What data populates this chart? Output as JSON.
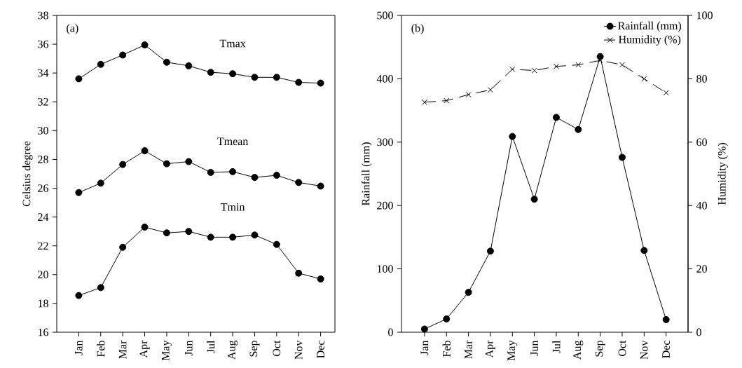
{
  "chart_data": [
    {
      "type": "line",
      "title": "(a)",
      "ylabel": "Celsius degree",
      "categories": [
        "Jan",
        "Feb",
        "Mar",
        "Apr",
        "May",
        "Jun",
        "Jul",
        "Aug",
        "Sep",
        "Oct",
        "Nov",
        "Dec"
      ],
      "ylim": [
        16,
        38
      ],
      "yticks": [
        16,
        18,
        20,
        22,
        24,
        26,
        28,
        30,
        32,
        34,
        36,
        38
      ],
      "marker": "circle",
      "line_style": "solid",
      "legend": false,
      "series": [
        {
          "name": "Tmax",
          "color": "#000000",
          "values": [
            33.6,
            34.6,
            35.25,
            35.95,
            34.75,
            34.5,
            34.05,
            33.95,
            33.7,
            33.7,
            33.35,
            33.3
          ]
        },
        {
          "name": "Tmean",
          "color": "#000000",
          "values": [
            25.7,
            26.35,
            27.65,
            28.6,
            27.7,
            27.85,
            27.1,
            27.15,
            26.75,
            26.9,
            26.4,
            26.15
          ]
        },
        {
          "name": "Tmin",
          "color": "#000000",
          "values": [
            18.55,
            19.1,
            21.9,
            23.3,
            22.9,
            23.0,
            22.6,
            22.6,
            22.75,
            22.1,
            20.1,
            19.7
          ]
        }
      ]
    },
    {
      "type": "line",
      "title": "(b)",
      "ylabel": "Rainfall (mm)",
      "y2label": "Humidity (%)",
      "categories": [
        "Jan",
        "Feb",
        "Mar",
        "Apr",
        "May",
        "Jun",
        "Jul",
        "Aug",
        "Sep",
        "Oct",
        "Nov",
        "Dec"
      ],
      "ylim": [
        0,
        500
      ],
      "yticks": [
        0,
        100,
        200,
        300,
        400,
        500
      ],
      "y2lim": [
        0,
        100
      ],
      "y2ticks": [
        0,
        20,
        40,
        60,
        80,
        100
      ],
      "legend": "top right",
      "series": [
        {
          "name": "Rainfall (mm)",
          "color": "#000000",
          "marker": "circle",
          "line_style": "solid",
          "values": [
            5,
            21,
            63,
            128,
            309,
            210,
            339,
            320,
            435,
            276,
            129,
            20
          ]
        },
        {
          "name": "Humidity (%)",
          "color": "#000000",
          "marker": "cross",
          "line_style": "dashed",
          "axis": "y2",
          "values": [
            72.6,
            73.1,
            75.0,
            76.5,
            83.0,
            82.6,
            83.9,
            84.4,
            85.8,
            84.4,
            80.0,
            75.6
          ]
        }
      ]
    }
  ]
}
